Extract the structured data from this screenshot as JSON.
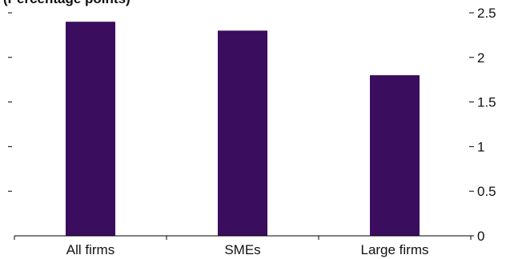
{
  "chart_data": {
    "type": "bar",
    "title": "",
    "ylabel": "(Percentage points)",
    "xlabel": "",
    "categories": [
      "All firms",
      "SMEs",
      "Large firms"
    ],
    "values": [
      2.4,
      2.3,
      1.8
    ],
    "ylim": [
      0,
      2.5
    ],
    "yticks": [
      0,
      0.5,
      1,
      1.5,
      2,
      2.5
    ],
    "ytick_labels": [
      "0",
      "0.5",
      "1",
      "1.5",
      "2",
      "2.5"
    ],
    "bar_color": "#3b0d5e",
    "grid": false,
    "legend": "none"
  }
}
